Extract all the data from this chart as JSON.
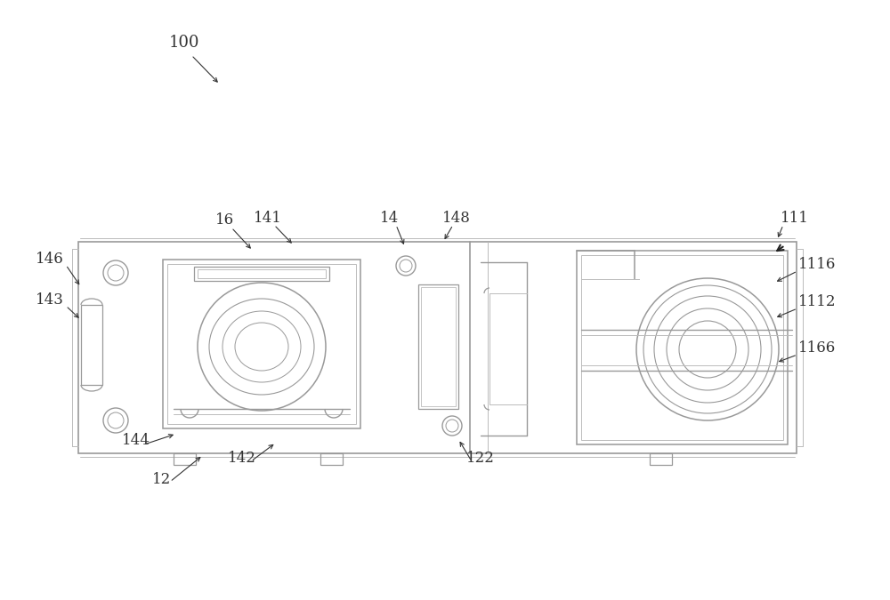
{
  "bg_color": "#ffffff",
  "lc": "#999999",
  "lc2": "#bbbbbb",
  "lc_dark": "#666666",
  "text_color": "#333333",
  "figsize": [
    10.0,
    6.75
  ],
  "dpi": 100
}
